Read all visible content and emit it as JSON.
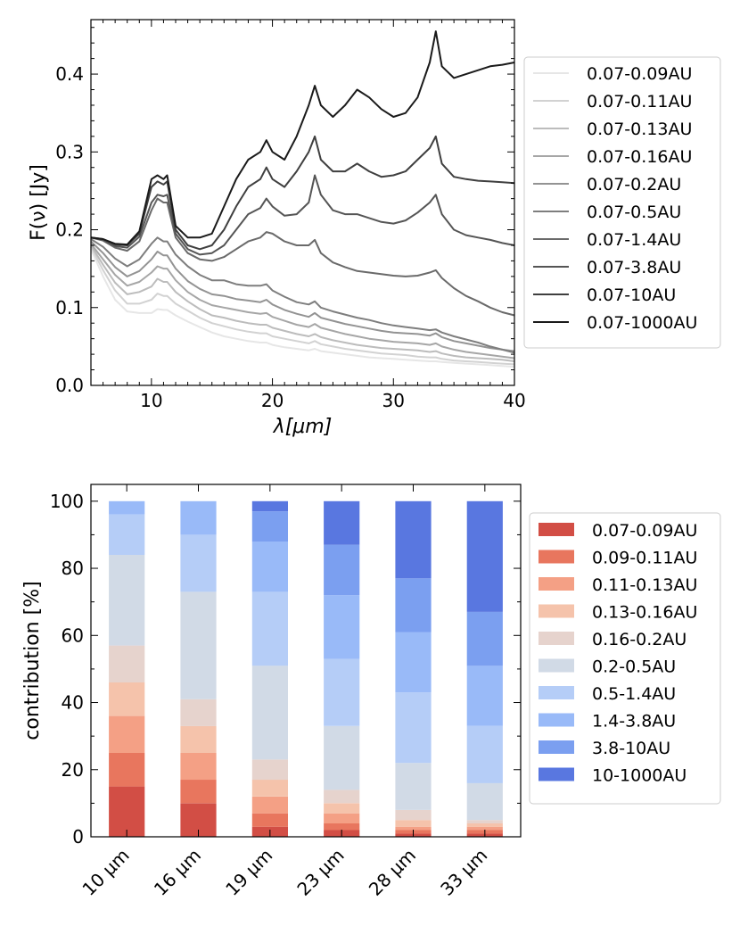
{
  "chart_data": [
    {
      "type": "line",
      "xlabel": "λ[μm]",
      "ylabel": "F(ν) [Jy]",
      "xlim": [
        5,
        40
      ],
      "ylim": [
        0,
        0.47
      ],
      "xticks": [
        10,
        20,
        30,
        40
      ],
      "yticks": [
        0.0,
        0.1,
        0.2,
        0.3,
        0.4
      ],
      "legend_position": "right",
      "series": [
        {
          "name": "0.07-0.09AU",
          "color": "#e6e6e6",
          "x": [
            5,
            6,
            7,
            8,
            9,
            10,
            10.5,
            11,
            11.3,
            12,
            13,
            14,
            15,
            16,
            17,
            18,
            19,
            19.5,
            20,
            21,
            22,
            23,
            23.5,
            24,
            25,
            26,
            27,
            28,
            29,
            30,
            31,
            32,
            33,
            33.5,
            34,
            35,
            36,
            37,
            38,
            39,
            40
          ],
          "y": [
            0.175,
            0.14,
            0.11,
            0.095,
            0.093,
            0.093,
            0.098,
            0.097,
            0.097,
            0.09,
            0.082,
            0.075,
            0.068,
            0.063,
            0.06,
            0.057,
            0.055,
            0.055,
            0.052,
            0.049,
            0.047,
            0.045,
            0.047,
            0.044,
            0.042,
            0.04,
            0.038,
            0.036,
            0.035,
            0.034,
            0.033,
            0.032,
            0.031,
            0.031,
            0.03,
            0.029,
            0.028,
            0.027,
            0.026,
            0.025,
            0.024
          ]
        },
        {
          "name": "0.07-0.11AU",
          "color": "#d2d2d2",
          "x": [
            5,
            6,
            7,
            8,
            9,
            10,
            10.5,
            11,
            11.3,
            12,
            13,
            14,
            15,
            16,
            17,
            18,
            19,
            19.5,
            20,
            21,
            22,
            23,
            23.5,
            24,
            25,
            26,
            27,
            28,
            29,
            30,
            31,
            32,
            33,
            33.5,
            34,
            35,
            36,
            37,
            38,
            39,
            40
          ],
          "y": [
            0.178,
            0.148,
            0.122,
            0.105,
            0.105,
            0.11,
            0.118,
            0.115,
            0.115,
            0.105,
            0.096,
            0.087,
            0.08,
            0.076,
            0.072,
            0.069,
            0.067,
            0.067,
            0.063,
            0.06,
            0.057,
            0.054,
            0.057,
            0.053,
            0.05,
            0.047,
            0.045,
            0.043,
            0.041,
            0.04,
            0.039,
            0.037,
            0.036,
            0.036,
            0.034,
            0.032,
            0.031,
            0.03,
            0.029,
            0.028,
            0.027
          ]
        },
        {
          "name": "0.07-0.13AU",
          "color": "#bcbcbc",
          "x": [
            5,
            6,
            7,
            8,
            9,
            10,
            10.5,
            11,
            11.3,
            12,
            13,
            14,
            15,
            16,
            17,
            18,
            19,
            19.5,
            20,
            21,
            22,
            23,
            23.5,
            24,
            25,
            26,
            27,
            28,
            29,
            30,
            31,
            32,
            33,
            33.5,
            34,
            35,
            36,
            37,
            38,
            39,
            40
          ],
          "y": [
            0.18,
            0.155,
            0.132,
            0.117,
            0.12,
            0.127,
            0.137,
            0.133,
            0.133,
            0.12,
            0.108,
            0.098,
            0.09,
            0.087,
            0.083,
            0.08,
            0.078,
            0.078,
            0.074,
            0.07,
            0.066,
            0.063,
            0.066,
            0.062,
            0.058,
            0.055,
            0.052,
            0.05,
            0.048,
            0.047,
            0.046,
            0.045,
            0.043,
            0.044,
            0.041,
            0.038,
            0.036,
            0.035,
            0.034,
            0.033,
            0.031
          ]
        },
        {
          "name": "0.07-0.16AU",
          "color": "#a6a6a6",
          "x": [
            5,
            6,
            7,
            8,
            9,
            10,
            10.5,
            11,
            11.3,
            12,
            13,
            14,
            15,
            16,
            17,
            18,
            19,
            19.5,
            20,
            21,
            22,
            23,
            23.5,
            24,
            25,
            26,
            27,
            28,
            29,
            30,
            31,
            32,
            33,
            33.5,
            34,
            35,
            36,
            37,
            38,
            39,
            40
          ],
          "y": [
            0.182,
            0.162,
            0.142,
            0.128,
            0.133,
            0.145,
            0.153,
            0.15,
            0.15,
            0.135,
            0.12,
            0.11,
            0.103,
            0.1,
            0.097,
            0.094,
            0.092,
            0.093,
            0.088,
            0.083,
            0.078,
            0.075,
            0.079,
            0.074,
            0.07,
            0.066,
            0.063,
            0.06,
            0.058,
            0.056,
            0.055,
            0.054,
            0.052,
            0.054,
            0.05,
            0.046,
            0.043,
            0.041,
            0.039,
            0.037,
            0.035
          ]
        },
        {
          "name": "0.07-0.2AU",
          "color": "#939393",
          "x": [
            5,
            6,
            7,
            8,
            9,
            10,
            10.5,
            11,
            11.3,
            12,
            13,
            14,
            15,
            16,
            17,
            18,
            19,
            19.5,
            20,
            21,
            22,
            23,
            23.5,
            24,
            25,
            26,
            27,
            28,
            29,
            30,
            31,
            32,
            33,
            33.5,
            34,
            35,
            36,
            37,
            38,
            39,
            40
          ],
          "y": [
            0.185,
            0.17,
            0.152,
            0.14,
            0.147,
            0.162,
            0.172,
            0.167,
            0.167,
            0.15,
            0.134,
            0.124,
            0.117,
            0.115,
            0.111,
            0.109,
            0.107,
            0.11,
            0.104,
            0.097,
            0.092,
            0.088,
            0.093,
            0.087,
            0.083,
            0.079,
            0.076,
            0.073,
            0.07,
            0.068,
            0.067,
            0.066,
            0.064,
            0.067,
            0.062,
            0.057,
            0.054,
            0.051,
            0.048,
            0.046,
            0.044
          ]
        },
        {
          "name": "0.07-0.5AU",
          "color": "#7e7e7e",
          "x": [
            5,
            6,
            7,
            8,
            9,
            10,
            10.5,
            11,
            11.3,
            12,
            13,
            14,
            15,
            16,
            17,
            18,
            19,
            19.5,
            20,
            21,
            22,
            23,
            23.5,
            24,
            25,
            26,
            27,
            28,
            29,
            30,
            31,
            32,
            33,
            33.5,
            34,
            35,
            36,
            37,
            38,
            39,
            40
          ],
          "y": [
            0.188,
            0.178,
            0.163,
            0.153,
            0.162,
            0.182,
            0.19,
            0.185,
            0.185,
            0.168,
            0.153,
            0.142,
            0.135,
            0.135,
            0.13,
            0.128,
            0.128,
            0.13,
            0.122,
            0.114,
            0.107,
            0.104,
            0.108,
            0.1,
            0.095,
            0.091,
            0.087,
            0.084,
            0.08,
            0.077,
            0.075,
            0.073,
            0.071,
            0.072,
            0.068,
            0.063,
            0.059,
            0.055,
            0.05,
            0.046,
            0.042
          ]
        },
        {
          "name": "0.07-1.4AU",
          "color": "#6a6a6a",
          "x": [
            5,
            6,
            7,
            8,
            9,
            10,
            10.5,
            11,
            11.3,
            12,
            13,
            14,
            15,
            16,
            17,
            18,
            19,
            19.5,
            20,
            21,
            22,
            23,
            23.5,
            24,
            25,
            26,
            27,
            28,
            29,
            30,
            31,
            32,
            33,
            33.5,
            34,
            35,
            36,
            37,
            38,
            39,
            40
          ],
          "y": [
            0.19,
            0.186,
            0.177,
            0.173,
            0.185,
            0.225,
            0.24,
            0.235,
            0.235,
            0.19,
            0.17,
            0.162,
            0.16,
            0.165,
            0.175,
            0.185,
            0.19,
            0.197,
            0.195,
            0.185,
            0.18,
            0.18,
            0.187,
            0.17,
            0.158,
            0.152,
            0.147,
            0.145,
            0.143,
            0.141,
            0.14,
            0.141,
            0.145,
            0.148,
            0.138,
            0.125,
            0.115,
            0.108,
            0.1,
            0.094,
            0.09
          ]
        },
        {
          "name": "0.07-3.8AU",
          "color": "#555555",
          "x": [
            5,
            6,
            7,
            8,
            9,
            10,
            10.5,
            11,
            11.3,
            12,
            13,
            14,
            15,
            16,
            17,
            18,
            19,
            19.5,
            20,
            21,
            22,
            23,
            23.5,
            24,
            25,
            26,
            27,
            28,
            29,
            30,
            31,
            32,
            33,
            33.5,
            34,
            35,
            36,
            37,
            38,
            39,
            40
          ],
          "y": [
            0.19,
            0.187,
            0.179,
            0.177,
            0.191,
            0.235,
            0.245,
            0.243,
            0.245,
            0.195,
            0.175,
            0.168,
            0.17,
            0.18,
            0.2,
            0.22,
            0.228,
            0.24,
            0.23,
            0.218,
            0.22,
            0.235,
            0.27,
            0.245,
            0.225,
            0.22,
            0.22,
            0.215,
            0.21,
            0.208,
            0.212,
            0.222,
            0.235,
            0.245,
            0.22,
            0.2,
            0.193,
            0.19,
            0.187,
            0.183,
            0.18
          ]
        },
        {
          "name": "0.07-10AU",
          "color": "#3f3f3f",
          "x": [
            5,
            6,
            7,
            8,
            9,
            10,
            10.5,
            11,
            11.3,
            12,
            13,
            14,
            15,
            16,
            17,
            18,
            19,
            19.5,
            20,
            21,
            22,
            23,
            23.5,
            24,
            25,
            26,
            27,
            28,
            29,
            30,
            31,
            32,
            33,
            33.5,
            34,
            35,
            36,
            37,
            38,
            39,
            40
          ],
          "y": [
            0.19,
            0.188,
            0.181,
            0.18,
            0.195,
            0.255,
            0.262,
            0.258,
            0.262,
            0.2,
            0.18,
            0.175,
            0.18,
            0.2,
            0.23,
            0.255,
            0.265,
            0.28,
            0.265,
            0.255,
            0.275,
            0.3,
            0.32,
            0.29,
            0.275,
            0.275,
            0.285,
            0.275,
            0.268,
            0.27,
            0.275,
            0.29,
            0.305,
            0.32,
            0.285,
            0.268,
            0.265,
            0.263,
            0.262,
            0.261,
            0.26
          ]
        },
        {
          "name": "0.07-1000AU",
          "color": "#1a1a1a",
          "x": [
            5,
            6,
            7,
            8,
            9,
            10,
            10.5,
            11,
            11.3,
            12,
            13,
            14,
            15,
            16,
            17,
            18,
            19,
            19.5,
            20,
            21,
            22,
            23,
            23.5,
            24,
            25,
            26,
            27,
            28,
            29,
            30,
            31,
            32,
            33,
            33.5,
            34,
            35,
            36,
            37,
            38,
            39,
            40
          ],
          "y": [
            0.19,
            0.188,
            0.182,
            0.181,
            0.198,
            0.265,
            0.27,
            0.265,
            0.27,
            0.205,
            0.19,
            0.19,
            0.195,
            0.23,
            0.265,
            0.29,
            0.3,
            0.315,
            0.3,
            0.29,
            0.32,
            0.36,
            0.385,
            0.36,
            0.345,
            0.36,
            0.38,
            0.37,
            0.355,
            0.345,
            0.35,
            0.37,
            0.415,
            0.455,
            0.41,
            0.395,
            0.4,
            0.405,
            0.41,
            0.412,
            0.415
          ]
        }
      ]
    },
    {
      "type": "bar",
      "stacked": true,
      "ylabel": "contribution [%]",
      "xlabel": "",
      "ylim": [
        0,
        105
      ],
      "yticks": [
        0,
        20,
        40,
        60,
        80,
        100
      ],
      "categories": [
        "10 μm",
        "16 μm",
        "19 μm",
        "23 μm",
        "28 μm",
        "33 μm"
      ],
      "legend_position": "right",
      "series": [
        {
          "name": "0.07-0.09AU",
          "color": "#d24e45",
          "values": [
            15,
            10,
            3,
            2,
            1,
            1
          ]
        },
        {
          "name": "0.09-0.11AU",
          "color": "#e8765e",
          "values": [
            10,
            7,
            4,
            2,
            1,
            1
          ]
        },
        {
          "name": "0.11-0.13AU",
          "color": "#f4a085",
          "values": [
            11,
            8,
            5,
            3,
            1,
            1
          ]
        },
        {
          "name": "0.13-0.16AU",
          "color": "#f5c3ab",
          "values": [
            10,
            8,
            5,
            3,
            2,
            1
          ]
        },
        {
          "name": "0.16-0.2AU",
          "color": "#e6d3cd",
          "values": [
            11,
            8,
            6,
            4,
            3,
            1
          ]
        },
        {
          "name": "0.2-0.5AU",
          "color": "#d1dae6",
          "values": [
            27,
            32,
            28,
            19,
            14,
            11
          ]
        },
        {
          "name": "0.5-1.4AU",
          "color": "#b5cdf7",
          "values": [
            12,
            17,
            22,
            20,
            21,
            17
          ]
        },
        {
          "name": "1.4-3.8AU",
          "color": "#99baf8",
          "values": [
            4,
            10,
            15,
            19,
            18,
            18
          ]
        },
        {
          "name": "3.8-10AU",
          "color": "#7b9ff0",
          "values": [
            0,
            0,
            9,
            15,
            16,
            16
          ]
        },
        {
          "name": "10-1000AU",
          "color": "#5977e0",
          "values": [
            0,
            0,
            3,
            13,
            23,
            33
          ]
        }
      ]
    }
  ]
}
